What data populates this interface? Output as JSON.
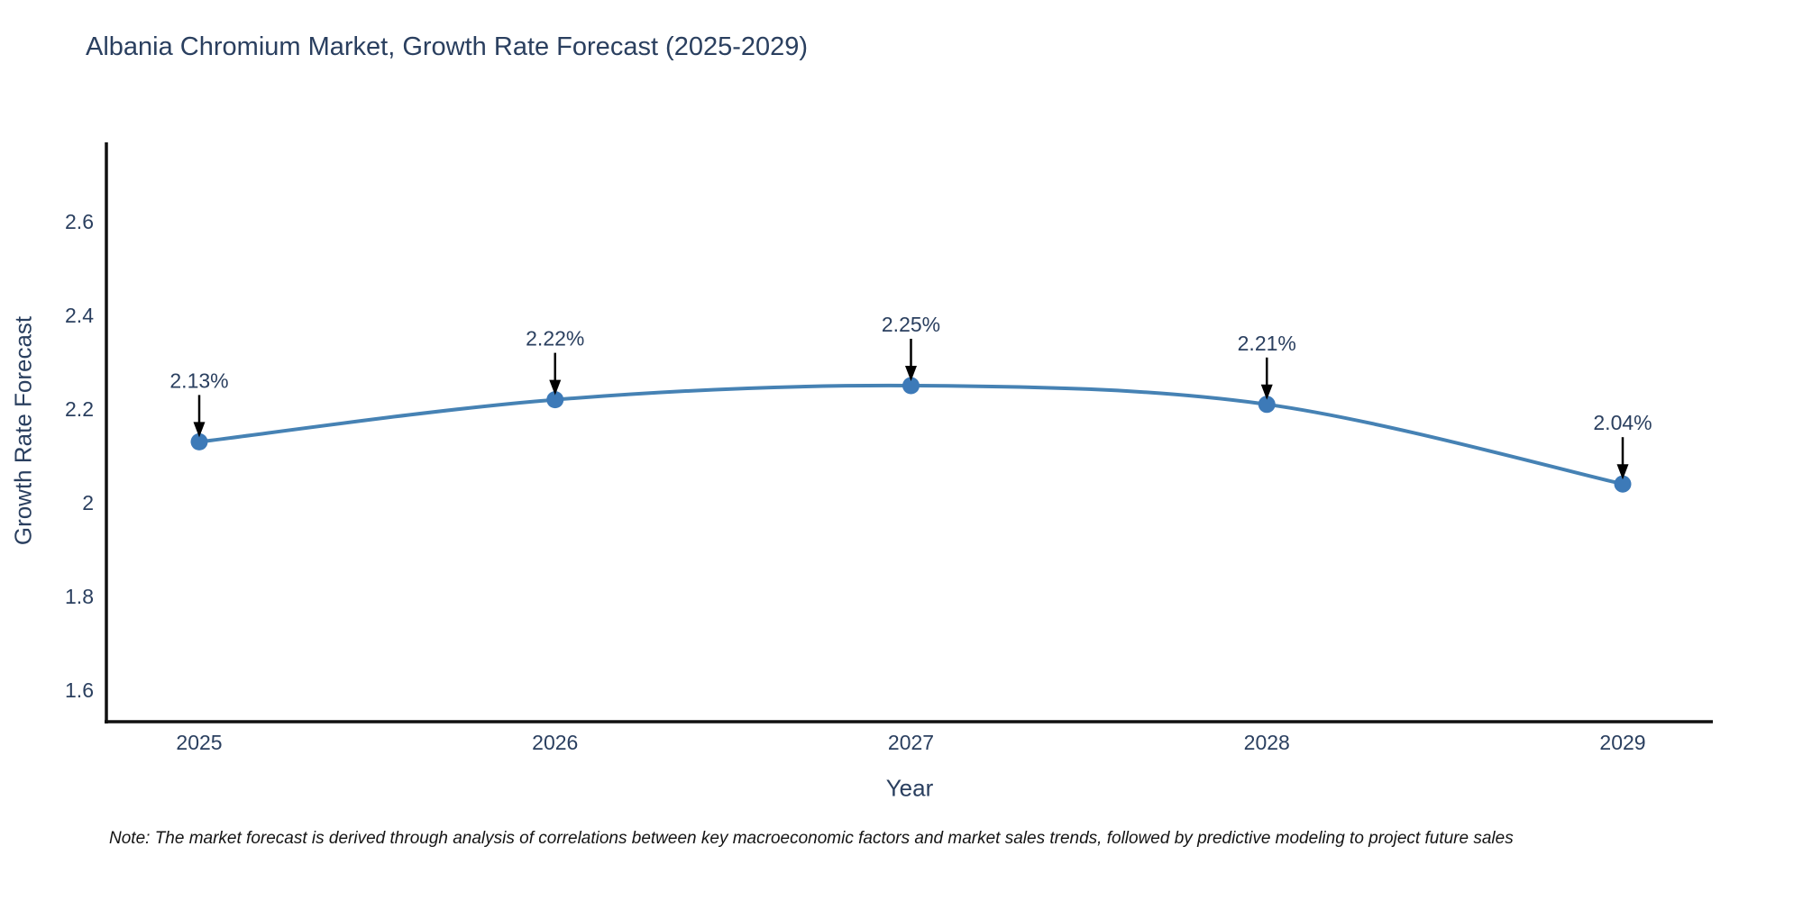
{
  "header": {
    "title": "Albania Chromium Market, Growth Rate Forecast (2025-2029)"
  },
  "footer": {
    "note": "Note: The market forecast is derived through analysis of correlations between key macroeconomic factors and market sales trends, followed by predictive modeling to project future sales"
  },
  "chart_data": {
    "type": "line",
    "line_shape": "spline",
    "title": "Albania Chromium Market, Growth Rate Forecast (2025-2029)",
    "xlabel": "Year",
    "ylabel": "Growth Rate Forecast",
    "series_name": "Growth Rate Forecast",
    "categories": [
      "2025",
      "2026",
      "2027",
      "2028",
      "2029"
    ],
    "values": [
      2.13,
      2.22,
      2.25,
      2.21,
      2.04
    ],
    "point_labels": [
      "2.13%",
      "2.22%",
      "2.25%",
      "2.21%",
      "2.04%"
    ],
    "yticks": [
      "1.6",
      "1.8",
      "2",
      "2.2",
      "2.4",
      "2.6"
    ],
    "ytick_values": [
      1.6,
      1.8,
      2.0,
      2.2,
      2.4,
      2.6
    ],
    "ylim": [
      1.535,
      2.765
    ],
    "grid": false,
    "legend_position": "none",
    "colors": {
      "line": "#4682b4",
      "marker": "#3d7ab8",
      "axis": "#111111",
      "tick_text": "#2a3f5f",
      "annotation_text": "#2a3f5f",
      "annotation_arrow": "#000000",
      "background": "#ffffff"
    }
  }
}
